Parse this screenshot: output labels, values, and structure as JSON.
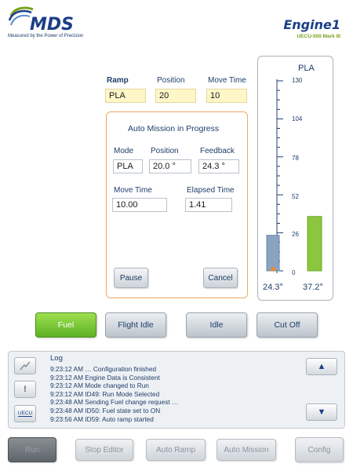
{
  "header": {
    "logo_text": "MDS",
    "logo_tagline": "Measured by the Power of Precision",
    "engine_title": "Engine1",
    "engine_subtitle": "UECU-500 Mark III"
  },
  "ramp": {
    "labels": {
      "ramp": "Ramp",
      "position": "Position",
      "move_time": "Move Time"
    },
    "values": {
      "ramp": "PLA",
      "position": "20",
      "move_time": "10"
    }
  },
  "mission": {
    "title": "Auto Mission  in Progress",
    "labels": {
      "mode": "Mode",
      "position": "Position",
      "feedback": "Feedback",
      "move_time": "Move Time",
      "elapsed_time": "Elapsed Time"
    },
    "values": {
      "mode": "PLA",
      "position": "20.0 °",
      "feedback": "24.3 °",
      "move_time": "10.00",
      "elapsed_time": "1.41"
    },
    "pause_label": "Pause",
    "cancel_label": "Cancel"
  },
  "gauge": {
    "title": "PLA",
    "ticks": [
      "130",
      "104",
      "78",
      "52",
      "26",
      "0"
    ],
    "min": 0,
    "max": 130,
    "feedback_value": 24.3,
    "command_value": 37.2,
    "feedback_label": "24.3°",
    "command_label": "37.2°",
    "colors": {
      "feedback_bar": "#8aa3bf",
      "command_bar": "#8cc63f",
      "marker": "#f08a1c"
    }
  },
  "fuel_buttons": [
    {
      "label": "Fuel",
      "active": true
    },
    {
      "label": "Flight Idle",
      "active": false
    },
    {
      "label": "Idle",
      "active": false
    },
    {
      "label": "Cut Off",
      "active": false
    }
  ],
  "log": {
    "title": "Log",
    "icon_labels": {
      "uecu": "UECU"
    },
    "lines": [
      "9:23:12 AM … Configuration finished",
      "9:23:12 AM Engine Data is Consistent",
      "9:23:12 AM Mode changed to Run",
      "9:23:12 AM ID49: Run Mode Selected",
      "9:23:48 AM Sending Fuel change request …",
      "9:23:48 AM ID50: Fuel state set to ON",
      "9:23:56 AM ID59: Auto ramp started"
    ]
  },
  "bottom_bar": {
    "run": "Run",
    "stop_editor": "Stop Editor",
    "auto_ramp": "Auto Ramp",
    "auto_mission": "Auto Mission",
    "config": "Config"
  },
  "colors": {
    "brand_blue": "#1b3f87",
    "brand_green": "#7aa21d",
    "mission_border": "#f0a860",
    "highlight_field": "#fff6c8"
  }
}
